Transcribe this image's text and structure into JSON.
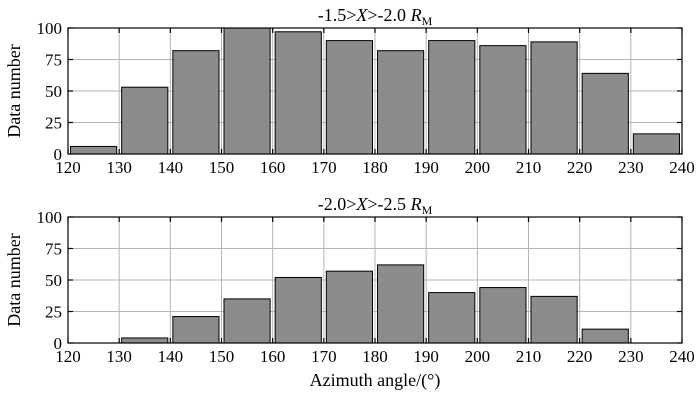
{
  "chart_data": [
    {
      "type": "bar",
      "title": "-1.5>X>-2.0 R",
      "title_parts": {
        "a": "-1.5>",
        "var": "X",
        "b": ">-2.0 ",
        "unit": "R",
        "unit_sub": "M"
      },
      "xlabel": "",
      "ylabel": "Data number",
      "xlim": [
        120,
        240
      ],
      "ylim": [
        0,
        100
      ],
      "xticks": [
        "120",
        "130",
        "140",
        "150",
        "160",
        "170",
        "180",
        "190",
        "200",
        "210",
        "220",
        "230",
        "240"
      ],
      "yticks": [
        "0",
        "25",
        "50",
        "75",
        "100"
      ],
      "bin_width": 10,
      "bins": [
        120,
        130,
        140,
        150,
        160,
        170,
        180,
        190,
        200,
        210,
        220,
        230
      ],
      "values": [
        6,
        53,
        82,
        101,
        97,
        90,
        82,
        90,
        86,
        89,
        64,
        16
      ],
      "bar_color": "#8c8c8c",
      "grid": true
    },
    {
      "type": "bar",
      "title": "-2.0>X>-2.5 R",
      "title_parts": {
        "a": "-2.0>",
        "var": "X",
        "b": ">-2.5 ",
        "unit": "R",
        "unit_sub": "M"
      },
      "xlabel": "Azimuth angle/(°)",
      "ylabel": "Data number",
      "xlim": [
        120,
        240
      ],
      "ylim": [
        0,
        100
      ],
      "xticks": [
        "120",
        "130",
        "140",
        "150",
        "160",
        "170",
        "180",
        "190",
        "200",
        "210",
        "220",
        "230",
        "240"
      ],
      "yticks": [
        "0",
        "25",
        "50",
        "75",
        "100"
      ],
      "bin_width": 10,
      "bins": [
        120,
        130,
        140,
        150,
        160,
        170,
        180,
        190,
        200,
        210,
        220,
        230
      ],
      "values": [
        0,
        4,
        21,
        35,
        52,
        57,
        62,
        40,
        44,
        37,
        11,
        0
      ],
      "bar_color": "#8c8c8c",
      "grid": true
    }
  ]
}
